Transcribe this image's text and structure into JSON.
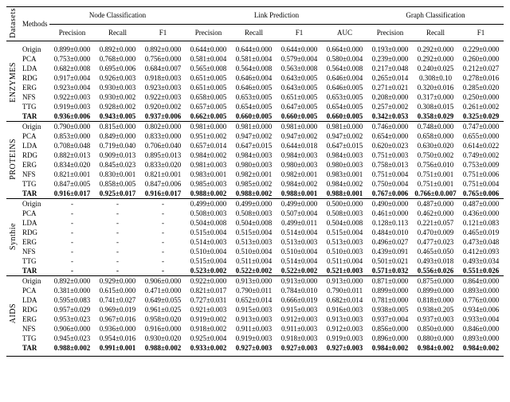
{
  "header": {
    "datasets_label": "Datasets",
    "methods_label": "Methods",
    "groups": [
      "Node Classification",
      "Link Prediction",
      "Graph Classification"
    ],
    "sub": {
      "node": [
        "Precision",
        "Recall",
        "F1"
      ],
      "link": [
        "Precision",
        "Recall",
        "F1",
        "AUC"
      ],
      "graph": [
        "Precision",
        "Recall",
        "F1"
      ]
    }
  },
  "blocks": [
    {
      "dataset": "ENZYMES",
      "rows": [
        {
          "m": "Origin",
          "v": [
            "0.899±0.000",
            "0.892±0.000",
            "0.892±0.000",
            "0.644±0.000",
            "0.644±0.000",
            "0.644±0.000",
            "0.664±0.000",
            "0.193±0.000",
            "0.292±0.000",
            "0.229±0.000"
          ]
        },
        {
          "m": "PCA",
          "v": [
            "0.753±0.000",
            "0.768±0.000",
            "0.756±0.000",
            "0.581±0.004",
            "0.581±0.004",
            "0.579±0.004",
            "0.580±0.004",
            "0.239±0.000",
            "0.292±0.000",
            "0.260±0.000"
          ]
        },
        {
          "m": "LDA",
          "v": [
            "0.682±0.008",
            "0.695±0.006",
            "0.684±0.007",
            "0.565±0.008",
            "0.564±0.008",
            "0.563±0.008",
            "0.564±0.008",
            "0.217±0.048",
            "0.240±0.025",
            "0.212±0.027"
          ]
        },
        {
          "m": "RDG",
          "v": [
            "0.917±0.004",
            "0.926±0.003",
            "0.918±0.003",
            "0.651±0.005",
            "0.646±0.004",
            "0.643±0.005",
            "0.646±0.004",
            "0.265±0.014",
            "0.308±0.10",
            "0.278±0.016"
          ]
        },
        {
          "m": "ERG",
          "v": [
            "0.923±0.004",
            "0.930±0.003",
            "0.923±0.003",
            "0.651±0.005",
            "0.646±0.005",
            "0.643±0.005",
            "0.646±0.005",
            "0.271±0.021",
            "0.320±0.016",
            "0.285±0.020"
          ]
        },
        {
          "m": "NFS",
          "v": [
            "0.922±0.003",
            "0.930±0.002",
            "0.922±0.003",
            "0.658±0.005",
            "0.653±0.005",
            "0.651±0.005",
            "0.653±0.005",
            "0.208±0.000",
            "0.317±0.000",
            "0.250±0.000"
          ]
        },
        {
          "m": "TTG",
          "v": [
            "0.919±0.003",
            "0.928±0.002",
            "0.920±0.002",
            "0.657±0.005",
            "0.654±0.005",
            "0.647±0.005",
            "0.654±0.005",
            "0.257±0.002",
            "0.308±0.015",
            "0.261±0.002"
          ]
        },
        {
          "m": "TAR",
          "bold": true,
          "v": [
            "0.936±0.006",
            "0.943±0.005",
            "0.937±0.006",
            "0.662±0.005",
            "0.660±0.005",
            "0.660±0.005",
            "0.660±0.005",
            "0.342±0.053",
            "0.358±0.029",
            "0.325±0.029"
          ]
        }
      ]
    },
    {
      "dataset": "PROTEINS",
      "rows": [
        {
          "m": "Origin",
          "v": [
            "0.790±0.000",
            "0.815±0.000",
            "0.802±0.000",
            "0.981±0.000",
            "0.981±0.000",
            "0.981±0.000",
            "0.981±0.000",
            "0.746±0.000",
            "0.748±0.000",
            "0.747±0.000"
          ]
        },
        {
          "m": "PCA",
          "v": [
            "0.853±0.000",
            "0.849±0.000",
            "0.833±0.000",
            "0.951±0.002",
            "0.947±0.002",
            "0.947±0.002",
            "0.947±0.002",
            "0.654±0.000",
            "0.658±0.000",
            "0.655±0.000"
          ]
        },
        {
          "m": "LDA",
          "v": [
            "0.708±0.048",
            "0.719±0.040",
            "0.706±0.040",
            "0.657±0.014",
            "0.647±0.015",
            "0.644±0.018",
            "0.647±0.015",
            "0.620±0.023",
            "0.630±0.020",
            "0.614±0.022"
          ]
        },
        {
          "m": "RDG",
          "v": [
            "0.882±0.013",
            "0.909±0.013",
            "0.895±0.013",
            "0.984±0.002",
            "0.984±0.003",
            "0.984±0.003",
            "0.984±0.003",
            "0.751±0.003",
            "0.750±0.002",
            "0.749±0.002"
          ]
        },
        {
          "m": "ERG",
          "v": [
            "0.834±0.020",
            "0.845±0.023",
            "0.833±0.020",
            "0.981±0.003",
            "0.980±0.003",
            "0.980±0.003",
            "0.980±0.003",
            "0.758±0.013",
            "0.756±0.010",
            "0.753±0.009"
          ]
        },
        {
          "m": "NFS",
          "v": [
            "0.821±0.001",
            "0.830±0.001",
            "0.821±0.001",
            "0.983±0.001",
            "0.982±0.001",
            "0.982±0.001",
            "0.983±0.001",
            "0.751±0.004",
            "0.751±0.001",
            "0.751±0.006"
          ]
        },
        {
          "m": "TTG",
          "v": [
            "0.847±0.005",
            "0.858±0.005",
            "0.847±0.006",
            "0.985±0.003",
            "0.985±0.002",
            "0.984±0.002",
            "0.984±0.002",
            "0.750±0.004",
            "0.751±0.001",
            "0.751±0.004"
          ]
        },
        {
          "m": "TAR",
          "bold": true,
          "v": [
            "0.916±0.017",
            "0.925±0.017",
            "0.916±0.017",
            "0.988±0.002",
            "0.988±0.002",
            "0.988±0.001",
            "0.988±0.001",
            "0.767±0.006",
            "0.766±0.0.007",
            "0.765±0.006"
          ]
        }
      ]
    },
    {
      "dataset": "Synthie",
      "rows": [
        {
          "m": "Origin",
          "v": [
            "-",
            "-",
            "-",
            "0.499±0.000",
            "0.499±0.000",
            "0.499±0.000",
            "0.500±0.000",
            "0.490±0.000",
            "0.487±0.000",
            "0.487±0.000"
          ]
        },
        {
          "m": "PCA",
          "v": [
            "-",
            "-",
            "-",
            "0.508±0.003",
            "0.508±0.003",
            "0.507±0.004",
            "0.508±0.003",
            "0.461±0.000",
            "0.462±0.000",
            "0.436±0.000"
          ]
        },
        {
          "m": "LDA",
          "v": [
            "-",
            "-",
            "-",
            "0.504±0.008",
            "0.504±0.008",
            "0.499±0.011",
            "0.504±0.008",
            "0.128±0.113",
            "0.221±0.057",
            "0.121±0.083"
          ]
        },
        {
          "m": "RDG",
          "v": [
            "-",
            "-",
            "-",
            "0.515±0.004",
            "0.515±0.004",
            "0.514±0.004",
            "0.515±0.004",
            "0.484±0.010",
            "0.470±0.009",
            "0.465±0.019"
          ]
        },
        {
          "m": "ERG",
          "v": [
            "-",
            "-",
            "-",
            "0.514±0.003",
            "0.513±0.003",
            "0.513±0.003",
            "0.513±0.003",
            "0.496±0.027",
            "0.477±0.023",
            "0.473±0.048"
          ]
        },
        {
          "m": "NFS",
          "v": [
            "-",
            "-",
            "-",
            "0.510±0.004",
            "0.510±0.004",
            "0.510±0.004",
            "0.510±0.003",
            "0.439±0.091",
            "0.465±0.050",
            "0.412±0.093"
          ]
        },
        {
          "m": "TTG",
          "v": [
            "-",
            "-",
            "-",
            "0.515±0.004",
            "0.511±0.004",
            "0.514±0.004",
            "0.511±0.004",
            "0.501±0.021",
            "0.493±0.018",
            "0.493±0.034"
          ]
        },
        {
          "m": "TAR",
          "bold": true,
          "v": [
            "-",
            "-",
            "-",
            "0.523±0.002",
            "0.522±0.002",
            "0.522±0.002",
            "0.521±0.003",
            "0.571±0.032",
            "0.556±0.026",
            "0.551±0.026"
          ]
        }
      ]
    },
    {
      "dataset": "AIDS",
      "rows": [
        {
          "m": "Origin",
          "v": [
            "0.892±0.000",
            "0.929±0.000",
            "0.906±0.000",
            "0.922±0.000",
            "0.913±0.000",
            "0.913±0.000",
            "0.913±0.000",
            "0.871±0.000",
            "0.875±0.000",
            "0.864±0.000"
          ]
        },
        {
          "m": "PCA",
          "v": [
            "0.381±0.000",
            "0.615±0.000",
            "0.471±0.000",
            "0.821±0.017",
            "0.790±0.011",
            "0.784±0.010",
            "0.790±0.011",
            "0.899±0.000",
            "0.899±0.000",
            "0.893±0.000"
          ]
        },
        {
          "m": "LDA",
          "v": [
            "0.595±0.083",
            "0.741±0.027",
            "0.649±0.055",
            "0.727±0.031",
            "0.652±0.014",
            "0.666±0.019",
            "0.682±0.014",
            "0.781±0.000",
            "0.818±0.000",
            "0.776±0.000"
          ]
        },
        {
          "m": "RDG",
          "v": [
            "0.957±0.029",
            "0.969±0.019",
            "0.961±0.025",
            "0.921±0.003",
            "0.915±0.003",
            "0.915±0.003",
            "0.916±0.003",
            "0.938±0.005",
            "0.938±0.205",
            "0.934±0.006"
          ]
        },
        {
          "m": "ERG",
          "v": [
            "0.953±0.023",
            "0.967±0.016",
            "0.958±0.020",
            "0.919±0.002",
            "0.913±0.003",
            "0.912±0.003",
            "0.913±0.003",
            "0.937±0.004",
            "0.937±0.003",
            "0.933±0.004"
          ]
        },
        {
          "m": "NFS",
          "v": [
            "0.906±0.000",
            "0.936±0.000",
            "0.916±0.000",
            "0.918±0.002",
            "0.911±0.003",
            "0.911±0.003",
            "0.912±0.003",
            "0.856±0.000",
            "0.850±0.000",
            "0.846±0.000"
          ]
        },
        {
          "m": "TTG",
          "v": [
            "0.945±0.023",
            "0.954±0.016",
            "0.930±0.020",
            "0.925±0.004",
            "0.919±0.003",
            "0.918±0.003",
            "0.919±0.003",
            "0.896±0.000",
            "0.880±0.000",
            "0.893±0.000"
          ]
        },
        {
          "m": "TAR",
          "bold": true,
          "v": [
            "0.988±0.002",
            "0.991±0.001",
            "0.988±0.002",
            "0.933±0.002",
            "0.927±0.003",
            "0.927±0.003",
            "0.927±0.003",
            "0.984±0.002",
            "0.984±0.002",
            "0.984±0.002"
          ]
        }
      ]
    }
  ]
}
